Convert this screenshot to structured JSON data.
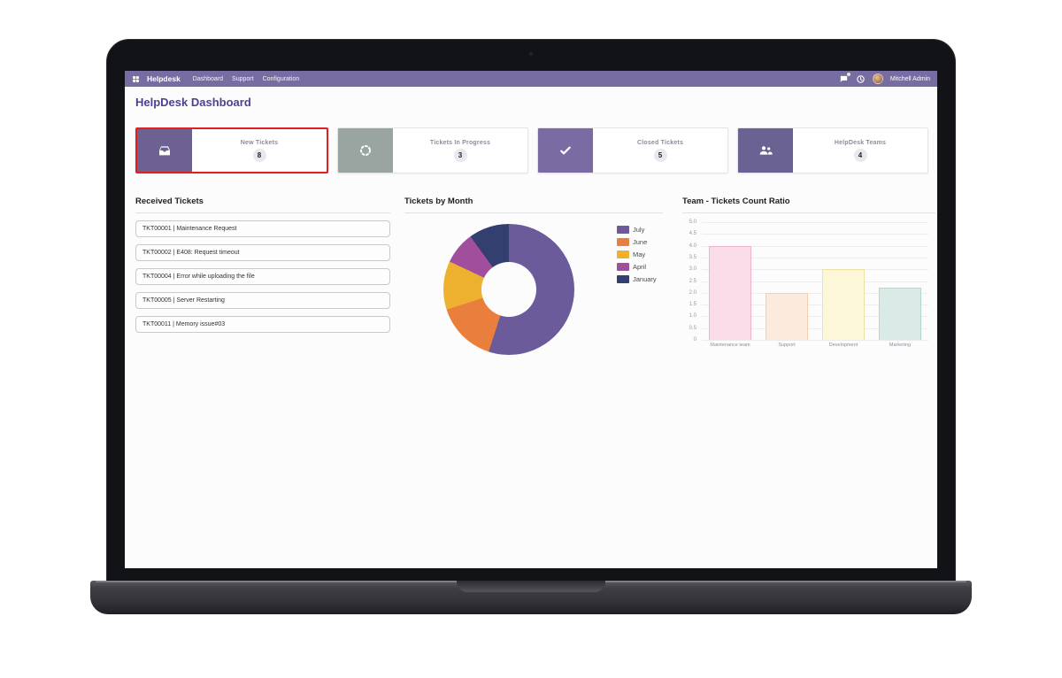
{
  "theme": {
    "navbar_color": "#786da3",
    "title_color": "#4c4193",
    "selected_card_border": "#e02020"
  },
  "nav": {
    "app_name": "Helpdesk",
    "menu": [
      "Dashboard",
      "Support",
      "Configuration"
    ],
    "icons": [
      "apps-grid-icon",
      "messages-icon",
      "activities-icon"
    ],
    "user": "Mitchell Admin"
  },
  "page": {
    "title": "HelpDesk Dashboard"
  },
  "cards": [
    {
      "label": "New Tickets",
      "value": "8",
      "icon": "inbox-icon",
      "icon_bg": "#6c6191",
      "selected": true
    },
    {
      "label": "Tickets In Progress",
      "value": "3",
      "icon": "spinner-icon",
      "icon_bg": "#9aa5a1",
      "selected": false
    },
    {
      "label": "Closed Tickets",
      "value": "5",
      "icon": "check-icon",
      "icon_bg": "#7a6ba2",
      "selected": false
    },
    {
      "label": "HelpDesk Teams",
      "value": "4",
      "icon": "team-icon",
      "icon_bg": "#6a6292",
      "selected": false
    }
  ],
  "received_tickets": {
    "title": "Received Tickets",
    "items": [
      "TKT00001 | Maintenance Request",
      "TKT00002 | E408: Request timeout",
      "TKT00004 | Error while uploading the file",
      "TKT00005 | Server Restarting",
      "TKT00011 | Memory issue#03"
    ]
  },
  "chart_data": [
    {
      "type": "pie",
      "title": "Tickets by Month",
      "labels": [
        "July",
        "June",
        "May",
        "April",
        "January"
      ],
      "values": [
        55,
        15,
        12,
        8,
        10
      ],
      "values_note": "estimated percent share; slices drawn clockwise from 12 o'clock",
      "colors": [
        "#6b5b9b",
        "#e97e3d",
        "#eeb12f",
        "#a14e9d",
        "#33406f"
      ],
      "donut_hole_ratio": 0.42,
      "legend_position": "right"
    },
    {
      "type": "bar",
      "title": "Team - Tickets Count Ratio",
      "categories": [
        "Maintenance team",
        "Support",
        "Development",
        "Marketing"
      ],
      "values": [
        4,
        2,
        3,
        2.2
      ],
      "ylim": [
        0,
        5
      ],
      "ytick_step": 0.5,
      "grid": true,
      "bar_fills": [
        "#f9dce8",
        "#fcebdc",
        "#fcf7d9",
        "#daeae6"
      ],
      "bar_borders": [
        "#f0b3cd",
        "#f2cfae",
        "#ece3a2",
        "#b5d6cf"
      ]
    }
  ]
}
